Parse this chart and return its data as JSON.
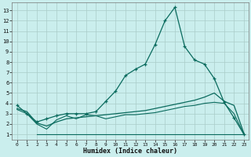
{
  "bg_color": "#caeeed",
  "grid_color": "#aaccc8",
  "line_color": "#0a6b5e",
  "xlabel": "Humidex (Indice chaleur)",
  "xlim": [
    -0.5,
    23.5
  ],
  "ylim": [
    0.5,
    13.8
  ],
  "xticks": [
    0,
    1,
    2,
    3,
    4,
    5,
    6,
    7,
    8,
    9,
    10,
    11,
    12,
    13,
    14,
    15,
    16,
    17,
    18,
    19,
    20,
    21,
    22,
    23
  ],
  "yticks": [
    1,
    2,
    3,
    4,
    5,
    6,
    7,
    8,
    9,
    10,
    11,
    12,
    13
  ],
  "main_x": [
    0,
    1,
    2,
    3,
    4,
    5,
    6,
    7,
    8,
    9,
    10,
    11,
    12,
    13,
    14,
    15,
    16,
    17,
    18,
    19,
    20,
    21,
    22,
    23
  ],
  "main_y": [
    3.8,
    3.0,
    2.2,
    2.5,
    2.8,
    3.0,
    3.0,
    3.0,
    3.2,
    4.2,
    5.2,
    6.7,
    7.3,
    7.8,
    9.7,
    12.0,
    13.3,
    9.5,
    8.2,
    7.8,
    6.4,
    4.1,
    2.6,
    1.0
  ],
  "rise_x": [
    0,
    1,
    2,
    3,
    4,
    5,
    6,
    7,
    8,
    9,
    10,
    11,
    12,
    13,
    14,
    15,
    16,
    17,
    18,
    19,
    20,
    21,
    22,
    23
  ],
  "rise_y": [
    3.5,
    3.2,
    2.1,
    1.8,
    2.2,
    2.5,
    2.6,
    2.7,
    2.8,
    2.9,
    3.0,
    3.1,
    3.2,
    3.3,
    3.5,
    3.7,
    3.9,
    4.1,
    4.3,
    4.6,
    5.0,
    4.2,
    3.8,
    1.1
  ],
  "wig_x": [
    0,
    1,
    2,
    3,
    4,
    5,
    6,
    7,
    8,
    9,
    10,
    11,
    12,
    13,
    14,
    15,
    16,
    17,
    18,
    19,
    20,
    21,
    22,
    23
  ],
  "wig_y": [
    3.4,
    3.0,
    2.0,
    1.5,
    2.4,
    2.8,
    2.5,
    2.9,
    2.8,
    2.5,
    2.7,
    2.9,
    2.9,
    3.0,
    3.1,
    3.3,
    3.5,
    3.7,
    3.8,
    4.0,
    4.1,
    4.0,
    3.0,
    1.0
  ],
  "flat_x": [
    2,
    3,
    4,
    5,
    6,
    7,
    8,
    9,
    10,
    11,
    12,
    13,
    14,
    15,
    16,
    17,
    18,
    19,
    20,
    21,
    22,
    23
  ],
  "flat_y": [
    1.0,
    1.0,
    1.0,
    1.0,
    1.0,
    1.0,
    1.0,
    1.0,
    1.0,
    1.0,
    1.0,
    1.0,
    1.0,
    1.0,
    1.0,
    1.0,
    1.0,
    1.0,
    1.0,
    1.0,
    1.0,
    1.0
  ]
}
